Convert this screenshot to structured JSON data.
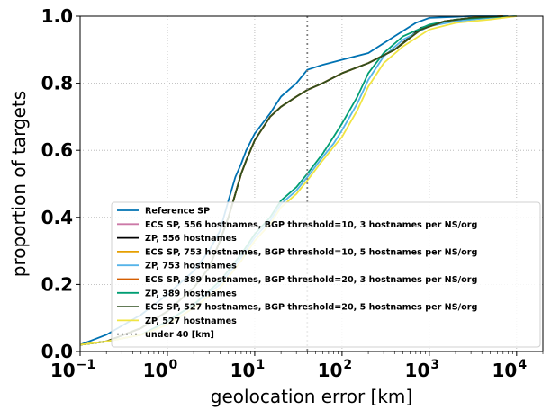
{
  "chart_data": {
    "type": "line",
    "xscale": "log",
    "xlim": [
      0.1,
      20000
    ],
    "ylim": [
      0.0,
      1.0
    ],
    "xlabel": "geolocation error [km]",
    "ylabel": "proportion of targets",
    "x_ticks": [
      {
        "value": 0.1,
        "base": "10",
        "exp": "−1"
      },
      {
        "value": 1,
        "base": "10",
        "exp": "0"
      },
      {
        "value": 10,
        "base": "10",
        "exp": "1"
      },
      {
        "value": 100,
        "base": "10",
        "exp": "2"
      },
      {
        "value": 1000,
        "base": "10",
        "exp": "3"
      },
      {
        "value": 10000,
        "base": "10",
        "exp": "4"
      }
    ],
    "y_ticks": [
      "0.0",
      "0.2",
      "0.4",
      "0.6",
      "0.8",
      "1.0"
    ],
    "y_tick_values": [
      0.0,
      0.2,
      0.4,
      0.6,
      0.8,
      1.0
    ],
    "grid": true,
    "legend_position": "lower-right",
    "vline": {
      "x": 40,
      "label": "under 40 [km]",
      "color": "#808080"
    },
    "series": [
      {
        "name": "Reference SP",
        "color": "#0072B2",
        "points": [
          [
            0.1,
            0.02
          ],
          [
            0.2,
            0.05
          ],
          [
            0.5,
            0.11
          ],
          [
            1,
            0.17
          ],
          [
            2,
            0.24
          ],
          [
            3,
            0.3
          ],
          [
            4,
            0.36
          ],
          [
            5,
            0.45
          ],
          [
            6,
            0.52
          ],
          [
            7,
            0.56
          ],
          [
            8,
            0.6
          ],
          [
            10,
            0.65
          ],
          [
            15,
            0.71
          ],
          [
            20,
            0.76
          ],
          [
            30,
            0.8
          ],
          [
            40,
            0.84
          ],
          [
            60,
            0.855
          ],
          [
            100,
            0.87
          ],
          [
            200,
            0.89
          ],
          [
            400,
            0.94
          ],
          [
            700,
            0.98
          ],
          [
            1000,
            0.995
          ],
          [
            3000,
            1.0
          ],
          [
            8000,
            1.0
          ]
        ]
      },
      {
        "name": "ECS SP, 556 hostnames,  BGP threshold=10, 3 hostnames per NS/org",
        "color": "#CC79A7",
        "points": [
          [
            0.1,
            0.02
          ],
          [
            0.2,
            0.03
          ],
          [
            0.5,
            0.07
          ],
          [
            1,
            0.12
          ],
          [
            2,
            0.19
          ],
          [
            3,
            0.25
          ],
          [
            4,
            0.33
          ],
          [
            5,
            0.4
          ],
          [
            6,
            0.47
          ],
          [
            7,
            0.53
          ],
          [
            8,
            0.57
          ],
          [
            10,
            0.63
          ],
          [
            15,
            0.7
          ],
          [
            20,
            0.73
          ],
          [
            30,
            0.76
          ],
          [
            40,
            0.78
          ],
          [
            60,
            0.8
          ],
          [
            100,
            0.83
          ],
          [
            200,
            0.86
          ],
          [
            400,
            0.9
          ],
          [
            800,
            0.96
          ],
          [
            1500,
            0.985
          ],
          [
            3000,
            0.995
          ],
          [
            7000,
            1.0
          ]
        ]
      },
      {
        "name": "ZP, 556 hostnames",
        "color": "#000000",
        "points": [
          [
            0.1,
            0.02
          ],
          [
            0.2,
            0.03
          ],
          [
            0.5,
            0.07
          ],
          [
            1,
            0.12
          ],
          [
            2,
            0.19
          ],
          [
            3,
            0.25
          ],
          [
            4,
            0.33
          ],
          [
            5,
            0.4
          ],
          [
            6,
            0.47
          ],
          [
            7,
            0.53
          ],
          [
            8,
            0.57
          ],
          [
            10,
            0.63
          ],
          [
            15,
            0.7
          ],
          [
            20,
            0.73
          ],
          [
            30,
            0.76
          ],
          [
            40,
            0.78
          ],
          [
            60,
            0.8
          ],
          [
            100,
            0.83
          ],
          [
            200,
            0.86
          ],
          [
            400,
            0.9
          ],
          [
            800,
            0.965
          ],
          [
            1500,
            0.985
          ],
          [
            3000,
            0.995
          ],
          [
            7000,
            1.0
          ]
        ]
      },
      {
        "name": "ECS SP, 753 hostnames,  BGP threshold=10, 5 hostnames per NS/org",
        "color": "#E69F00",
        "points": [
          [
            0.1,
            0.02
          ],
          [
            0.2,
            0.03
          ],
          [
            0.5,
            0.07
          ],
          [
            1,
            0.12
          ],
          [
            2,
            0.19
          ],
          [
            3,
            0.25
          ],
          [
            4,
            0.33
          ],
          [
            5,
            0.4
          ],
          [
            6,
            0.47
          ],
          [
            7,
            0.53
          ],
          [
            8,
            0.57
          ],
          [
            10,
            0.63
          ],
          [
            15,
            0.7
          ],
          [
            20,
            0.73
          ],
          [
            30,
            0.76
          ],
          [
            40,
            0.78
          ],
          [
            60,
            0.8
          ],
          [
            100,
            0.83
          ],
          [
            200,
            0.86
          ],
          [
            400,
            0.9
          ],
          [
            800,
            0.96
          ],
          [
            1500,
            0.985
          ],
          [
            3000,
            0.995
          ],
          [
            7000,
            1.0
          ]
        ]
      },
      {
        "name": "ZP, 753 hostnames",
        "color": "#56B4E9",
        "points": [
          [
            0.1,
            0.02
          ],
          [
            0.2,
            0.03
          ],
          [
            0.5,
            0.05
          ],
          [
            1,
            0.09
          ],
          [
            2,
            0.14
          ],
          [
            4,
            0.2
          ],
          [
            7,
            0.28
          ],
          [
            10,
            0.34
          ],
          [
            15,
            0.39
          ],
          [
            20,
            0.44
          ],
          [
            30,
            0.48
          ],
          [
            40,
            0.52
          ],
          [
            60,
            0.58
          ],
          [
            80,
            0.62
          ],
          [
            100,
            0.66
          ],
          [
            150,
            0.74
          ],
          [
            200,
            0.81
          ],
          [
            300,
            0.88
          ],
          [
            500,
            0.93
          ],
          [
            1000,
            0.97
          ],
          [
            2000,
            0.985
          ],
          [
            5000,
            0.995
          ],
          [
            10000,
            1.0
          ]
        ]
      },
      {
        "name": "ECS SP, 389 hostnames,  BGP threshold=20, 3 hostnames per NS/org",
        "color": "#D55E00",
        "points": [
          [
            0.1,
            0.02
          ],
          [
            0.2,
            0.03
          ],
          [
            0.5,
            0.07
          ],
          [
            1,
            0.12
          ],
          [
            2,
            0.19
          ],
          [
            3,
            0.25
          ],
          [
            4,
            0.33
          ],
          [
            5,
            0.4
          ],
          [
            6,
            0.47
          ],
          [
            7,
            0.53
          ],
          [
            8,
            0.57
          ],
          [
            10,
            0.63
          ],
          [
            15,
            0.7
          ],
          [
            20,
            0.73
          ],
          [
            30,
            0.76
          ],
          [
            40,
            0.78
          ],
          [
            60,
            0.8
          ],
          [
            100,
            0.83
          ],
          [
            200,
            0.86
          ],
          [
            400,
            0.9
          ],
          [
            800,
            0.96
          ],
          [
            1500,
            0.985
          ],
          [
            3000,
            0.995
          ],
          [
            7000,
            1.0
          ]
        ]
      },
      {
        "name": "ZP, 389 hostnames",
        "color": "#009E73",
        "points": [
          [
            0.1,
            0.02
          ],
          [
            0.2,
            0.03
          ],
          [
            0.5,
            0.05
          ],
          [
            1,
            0.09
          ],
          [
            2,
            0.14
          ],
          [
            4,
            0.21
          ],
          [
            7,
            0.29
          ],
          [
            10,
            0.35
          ],
          [
            15,
            0.4
          ],
          [
            20,
            0.45
          ],
          [
            30,
            0.49
          ],
          [
            40,
            0.53
          ],
          [
            60,
            0.59
          ],
          [
            80,
            0.64
          ],
          [
            100,
            0.68
          ],
          [
            150,
            0.76
          ],
          [
            200,
            0.83
          ],
          [
            300,
            0.89
          ],
          [
            500,
            0.94
          ],
          [
            1000,
            0.975
          ],
          [
            2000,
            0.99
          ],
          [
            5000,
            0.997
          ],
          [
            10000,
            1.0
          ]
        ]
      },
      {
        "name": "ECS SP, 527 hostnames,  BGP threshold=20, 5 hostnames per NS/org",
        "color": "#2F4F1F",
        "points": [
          [
            0.1,
            0.02
          ],
          [
            0.2,
            0.03
          ],
          [
            0.5,
            0.07
          ],
          [
            1,
            0.12
          ],
          [
            2,
            0.19
          ],
          [
            3,
            0.25
          ],
          [
            4,
            0.33
          ],
          [
            5,
            0.4
          ],
          [
            6,
            0.47
          ],
          [
            7,
            0.53
          ],
          [
            8,
            0.57
          ],
          [
            10,
            0.63
          ],
          [
            15,
            0.7
          ],
          [
            20,
            0.73
          ],
          [
            30,
            0.76
          ],
          [
            40,
            0.78
          ],
          [
            60,
            0.8
          ],
          [
            100,
            0.83
          ],
          [
            200,
            0.86
          ],
          [
            400,
            0.9
          ],
          [
            800,
            0.96
          ],
          [
            1500,
            0.985
          ],
          [
            3000,
            0.995
          ],
          [
            7000,
            1.0
          ]
        ]
      },
      {
        "name": "ZP, 527 hostnames",
        "color": "#F0E442",
        "points": [
          [
            0.1,
            0.02
          ],
          [
            0.2,
            0.03
          ],
          [
            0.5,
            0.05
          ],
          [
            1,
            0.08
          ],
          [
            2,
            0.13
          ],
          [
            4,
            0.19
          ],
          [
            7,
            0.27
          ],
          [
            10,
            0.33
          ],
          [
            15,
            0.38
          ],
          [
            20,
            0.43
          ],
          [
            30,
            0.47
          ],
          [
            40,
            0.51
          ],
          [
            60,
            0.57
          ],
          [
            80,
            0.61
          ],
          [
            100,
            0.64
          ],
          [
            150,
            0.72
          ],
          [
            200,
            0.79
          ],
          [
            300,
            0.86
          ],
          [
            500,
            0.91
          ],
          [
            1000,
            0.96
          ],
          [
            2000,
            0.98
          ],
          [
            5000,
            0.99
          ],
          [
            10000,
            1.0
          ]
        ]
      }
    ]
  }
}
